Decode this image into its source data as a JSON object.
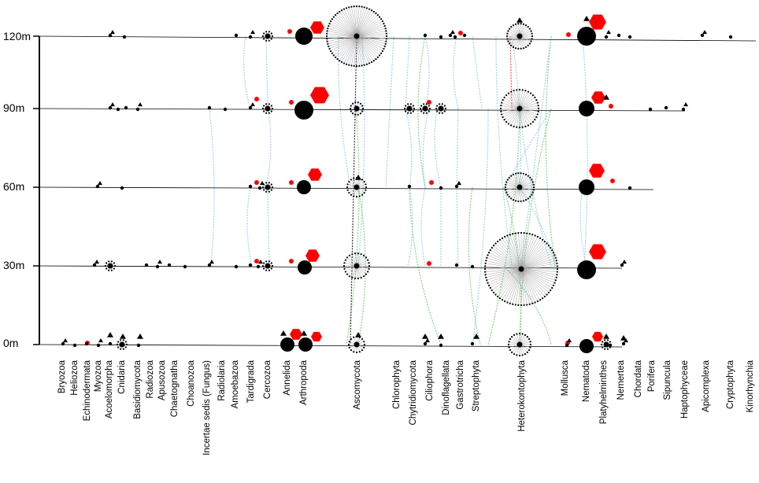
{
  "figure": {
    "depths": [
      "120m",
      "90m",
      "60m",
      "30m",
      "0m"
    ],
    "taxa": [
      "Bryozoa",
      "Heliozoa",
      "Echinodermata",
      "Myozoa",
      "Acoelomorpha",
      "Cnidaria",
      "Basidiomycota",
      "Radiozoa",
      "Apusozoa",
      "Chaetognatha",
      "Choanozoa",
      "Incertae sedis (Fungus)",
      "Radiolaria",
      "Amoebazoa",
      "Tardigrada",
      "Cercozoa",
      "Annelida",
      "Arthropoda",
      "Ascomycota",
      "Chlorophyta",
      "Chytridiomycota",
      "Ciliophora",
      "Dinoflagellata",
      "Gastrotricha",
      "Streptophyta",
      "Heterokontophyta",
      "Mollusca",
      "Nematoda",
      "Platyhelminthes",
      "Nemertea",
      "Chordata",
      "Porifera",
      "Sipuncula",
      "Haptophyceae",
      "Apicomplexa",
      "Cryptophyta",
      "Kinorhynchia"
    ],
    "colors": {
      "axis": "#000000",
      "node": "#000000",
      "highlight": "#ff0000",
      "link_blue": "#9fd3ea",
      "link_green": "#7fd67f",
      "link_black": "#333333",
      "link_red": "#ff5050",
      "spoke": "#a0a0a0"
    }
  }
}
